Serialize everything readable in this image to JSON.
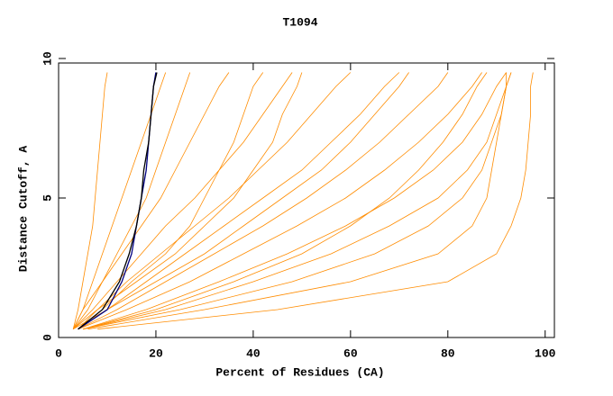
{
  "chart_data": {
    "type": "line",
    "title": "T1094",
    "xlabel": "Percent of Residues (CA)",
    "ylabel": "Distance Cutoff, A",
    "xlim": [
      0,
      101.9
    ],
    "xticks": [
      0,
      20,
      40,
      60,
      80,
      100
    ],
    "ylim": [
      0,
      10
    ],
    "yticks": [
      0,
      5,
      10
    ],
    "series": [
      {
        "color": "#ff8c00",
        "x": [
          3,
          4,
          5,
          6,
          7,
          7.5,
          8,
          8.5,
          9,
          9.5,
          10
        ],
        "values": [
          0.3,
          1,
          2,
          3,
          4,
          5,
          6,
          7,
          8,
          9,
          9.5
        ]
      },
      {
        "color": "#ff8c00",
        "x": [
          3,
          5,
          7,
          9,
          11,
          13,
          15,
          17,
          19,
          21,
          22
        ],
        "values": [
          0.3,
          1,
          2,
          3,
          4,
          5,
          6,
          7,
          8,
          9,
          9.5
        ]
      },
      {
        "color": "#ff8c00",
        "x": [
          3,
          6,
          9,
          13,
          17,
          21,
          24,
          27,
          30,
          33,
          35
        ],
        "values": [
          0.3,
          1,
          2,
          3,
          4,
          5,
          6,
          7,
          8,
          9,
          9.5
        ]
      },
      {
        "color": "#ff8c00",
        "x": [
          3,
          7,
          12,
          17,
          22,
          28,
          33,
          38,
          42,
          46,
          48
        ],
        "values": [
          0.3,
          1,
          2,
          3,
          4,
          5,
          6,
          7,
          8,
          9,
          9.5
        ]
      },
      {
        "color": "#ff8c00",
        "x": [
          4,
          8,
          14,
          21,
          28,
          35,
          41,
          47,
          52,
          57,
          60
        ],
        "values": [
          0.3,
          1,
          2,
          3,
          4,
          5,
          6,
          7,
          8,
          9,
          9.5
        ]
      },
      {
        "color": "#ff8c00",
        "x": [
          4,
          10,
          18,
          26,
          34,
          42,
          50,
          56,
          62,
          67,
          70
        ],
        "values": [
          0.3,
          1,
          2,
          3,
          4,
          5,
          6,
          7,
          8,
          9,
          9.5
        ]
      },
      {
        "color": "#ff8c00",
        "x": [
          4,
          12,
          22,
          32,
          42,
          51,
          59,
          66,
          72,
          78,
          80
        ],
        "values": [
          0.3,
          1,
          2,
          3,
          4,
          5,
          6,
          7,
          8,
          9,
          9.5
        ]
      },
      {
        "color": "#ff8c00",
        "x": [
          4,
          14,
          27,
          38,
          49,
          59,
          67,
          74,
          80,
          85,
          87
        ],
        "values": [
          0.3,
          1,
          2,
          3,
          4,
          5,
          6,
          7,
          8,
          9,
          9.5
        ]
      },
      {
        "color": "#ff8c00",
        "x": [
          5,
          18,
          33,
          47,
          59,
          69,
          77,
          83,
          87,
          90,
          92
        ],
        "values": [
          0.3,
          1,
          2,
          3,
          4,
          5,
          6,
          7,
          8,
          9,
          9.5
        ]
      },
      {
        "color": "#ff8c00",
        "x": [
          5,
          22,
          40,
          56,
          68,
          78,
          84,
          88,
          90,
          92,
          93
        ],
        "values": [
          0.3,
          1,
          2,
          3,
          4,
          5,
          6,
          7,
          8,
          9,
          9.5
        ]
      },
      {
        "color": "#ff8c00",
        "x": [
          5,
          25,
          48,
          65,
          76,
          83,
          87,
          89,
          91,
          92,
          93
        ],
        "values": [
          0.3,
          1,
          2,
          3,
          4,
          5,
          6,
          7,
          8,
          9,
          9.5
        ]
      },
      {
        "color": "#ff8c00",
        "x": [
          6,
          30,
          60,
          78,
          85,
          88,
          89,
          90,
          91,
          92,
          92
        ],
        "values": [
          0.3,
          1,
          2,
          3,
          4,
          5,
          6,
          7,
          8,
          9,
          9.5
        ]
      },
      {
        "color": "#ff8c00",
        "x": [
          8,
          45,
          80,
          90,
          93,
          95,
          96,
          96.5,
          97,
          97,
          97.5
        ],
        "values": [
          0.3,
          1,
          2,
          3,
          4,
          5,
          6,
          7,
          8,
          9,
          9.5
        ]
      },
      {
        "color": "#ff8c00",
        "x": [
          3,
          8,
          16,
          24,
          30,
          36,
          40,
          44,
          46,
          49,
          50
        ],
        "values": [
          0.3,
          1,
          2,
          3,
          4,
          5,
          6,
          7,
          8,
          9,
          9.5
        ]
      },
      {
        "color": "#ff8c00",
        "x": [
          4,
          9,
          15,
          22,
          27,
          30,
          33,
          36,
          38,
          40,
          42
        ],
        "values": [
          0.3,
          1,
          2,
          3,
          4,
          5,
          6,
          7,
          8,
          9,
          9.5
        ]
      },
      {
        "color": "#ff8c00",
        "x": [
          3,
          5,
          9,
          12,
          15,
          18,
          20,
          22,
          24,
          26,
          27
        ],
        "values": [
          0.3,
          1,
          2,
          3,
          4,
          5,
          6,
          7,
          8,
          9,
          9.5
        ]
      },
      {
        "color": "#ff8c00",
        "x": [
          3,
          10,
          20,
          30,
          38,
          46,
          54,
          60,
          65,
          70,
          72
        ],
        "values": [
          0.3,
          1,
          2,
          3,
          4,
          5,
          6,
          7,
          8,
          9,
          9.5
        ]
      },
      {
        "color": "#ff8c00",
        "x": [
          5,
          20,
          36,
          50,
          60,
          68,
          74,
          79,
          83,
          86,
          88
        ],
        "values": [
          0.3,
          1,
          2,
          3,
          4,
          5,
          6,
          7,
          8,
          9,
          9.5
        ]
      },
      {
        "color": "#000080",
        "x": [
          4,
          10,
          13,
          15,
          16,
          17,
          18,
          18.5,
          19,
          19.5,
          20
        ],
        "values": [
          0.3,
          1,
          2,
          3,
          4,
          5,
          6,
          7,
          8,
          9,
          9.5
        ]
      },
      {
        "color": "#000000",
        "x": [
          4,
          9,
          12.5,
          14.5,
          16,
          17,
          17.5,
          18.5,
          19,
          19.5,
          20.2
        ],
        "values": [
          0.3,
          1,
          2,
          3,
          4,
          5,
          6,
          7,
          8,
          9,
          9.5
        ]
      }
    ]
  }
}
